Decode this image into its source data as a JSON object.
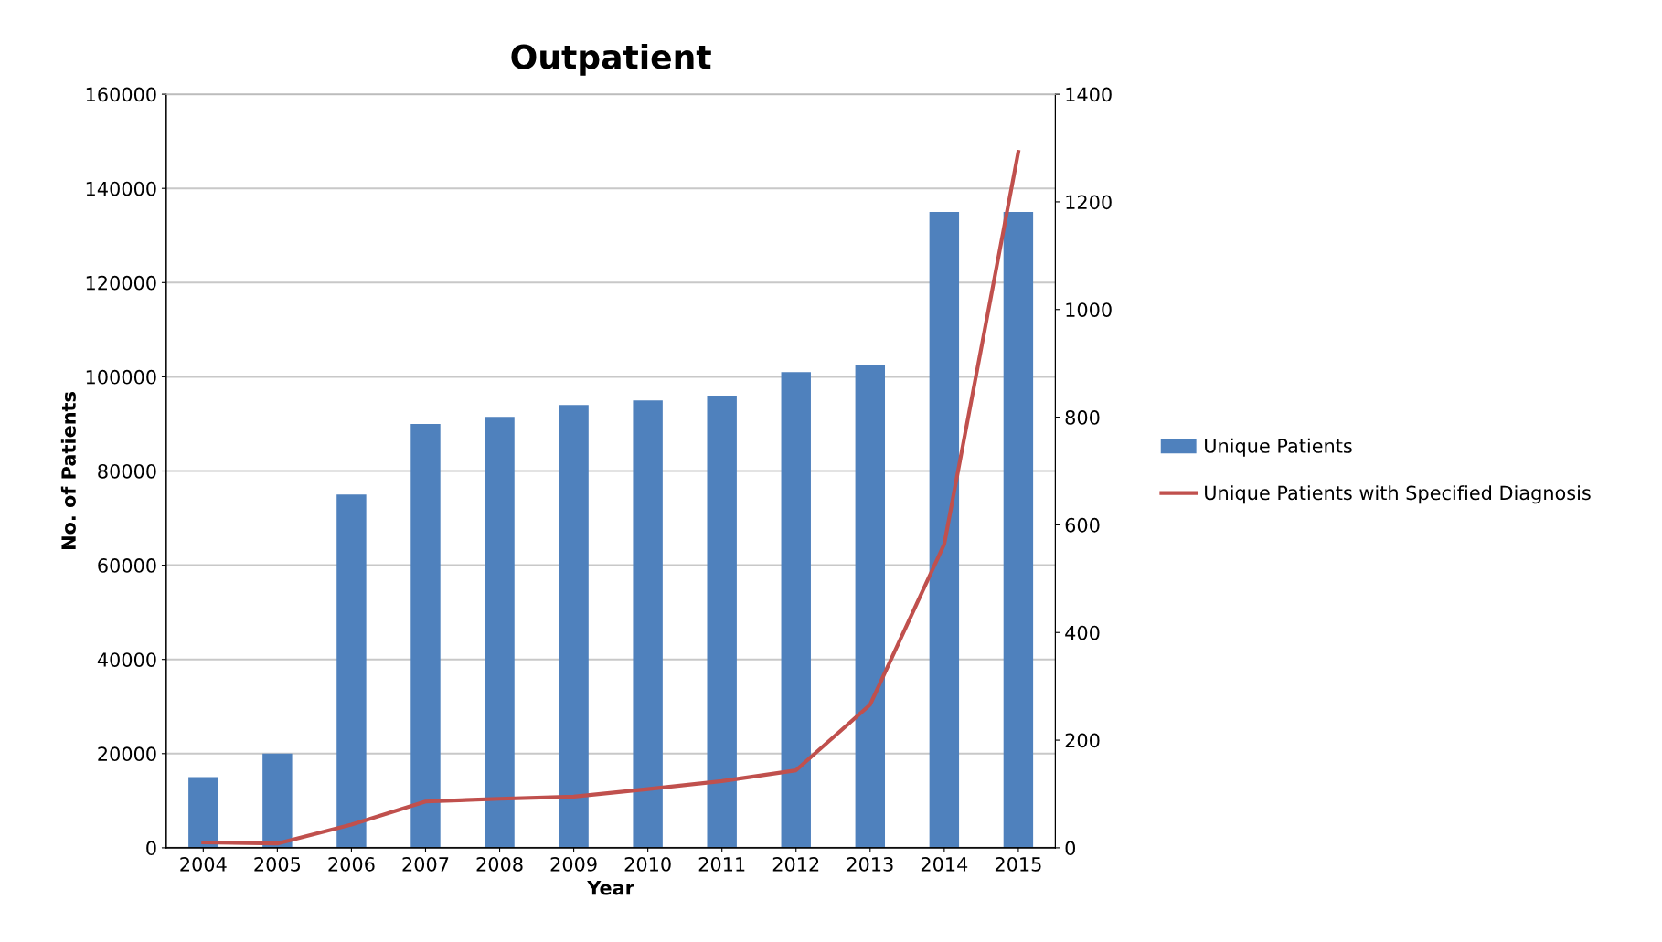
{
  "chart_data": {
    "type": "bar",
    "title": "Outpatient",
    "xlabel": "Year",
    "ylabel": "No. of Patients",
    "categories": [
      "2004",
      "2005",
      "2006",
      "2007",
      "2008",
      "2009",
      "2010",
      "2011",
      "2012",
      "2013",
      "2014",
      "2015"
    ],
    "series": [
      {
        "name": "Unique Patients",
        "color": "#4f81bd",
        "values": [
          15000,
          20000,
          75000,
          90000,
          91500,
          94000,
          95000,
          96000,
          101000,
          102500,
          135000,
          135000
        ]
      },
      {
        "name": "Unique Patients with Specified Diagnosis",
        "type": "line",
        "axis": "y2",
        "color": "#c0504d",
        "values": [
          10,
          8,
          43,
          86,
          91,
          95,
          109,
          124,
          144,
          266,
          564,
          1293
        ]
      }
    ],
    "ylim": [
      0,
      160000
    ],
    "yticks": [
      0,
      20000,
      40000,
      60000,
      80000,
      100000,
      120000,
      140000,
      160000
    ],
    "y2lim": [
      0,
      1400
    ],
    "y2ticks": [
      0,
      200,
      400,
      600,
      800,
      1000,
      1200,
      1400
    ],
    "grid": "y",
    "legend": "right",
    "marker": "none",
    "line_style": "solid"
  }
}
